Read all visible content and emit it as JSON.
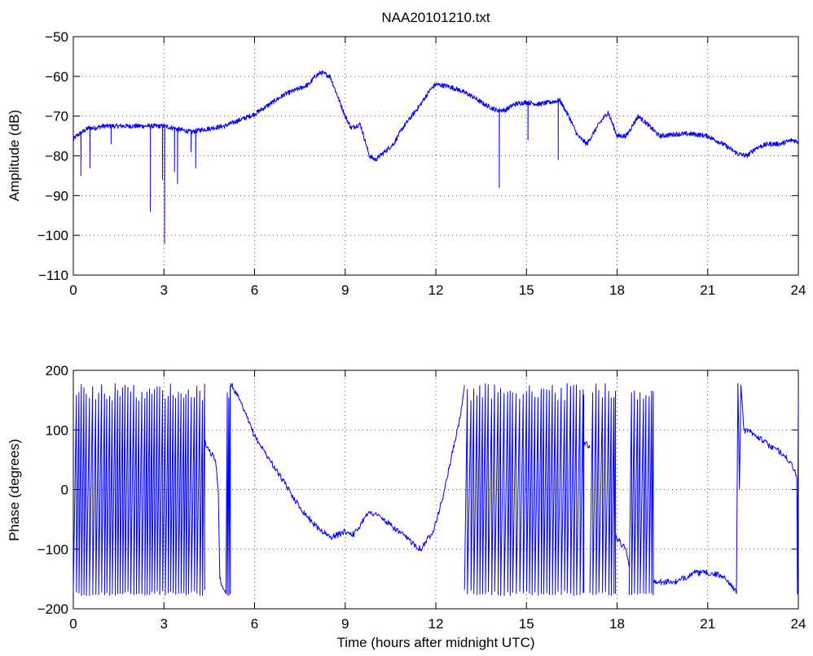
{
  "chart_data": [
    {
      "type": "line",
      "title": "NAA20101210.txt",
      "xlabel": "",
      "ylabel": "Amplitude (dB)",
      "xlim": [
        0,
        24
      ],
      "ylim": [
        -110,
        -50
      ],
      "xticks": [
        0,
        3,
        6,
        9,
        12,
        15,
        18,
        21,
        24
      ],
      "yticks": [
        -110,
        -100,
        -90,
        -80,
        -70,
        -60,
        -50
      ],
      "xtick_labels": [
        "0",
        "3",
        "6",
        "9",
        "12",
        "15",
        "18",
        "21",
        "24"
      ],
      "ytick_labels": [
        "−110",
        "−100",
        "−90",
        "−80",
        "−70",
        "−60",
        "−50"
      ],
      "grid": true,
      "color": "#0000ff",
      "series": [
        {
          "x": [
            0,
            0.1,
            0.2,
            0.3,
            0.4,
            0.5,
            0.7,
            1.0,
            1.5,
            2.0,
            2.5,
            3.0,
            3.3,
            3.6,
            3.9,
            4.2,
            4.6,
            5.0,
            5.5,
            6.0,
            6.5,
            7.0,
            7.5,
            7.8,
            8.0,
            8.2,
            8.5,
            8.8,
            9.0,
            9.2,
            9.5,
            9.8,
            10.0,
            10.3,
            10.6,
            10.9,
            11.2,
            11.5,
            11.8,
            12.0,
            12.4,
            12.8,
            13.2,
            13.6,
            14.0,
            14.3,
            14.6,
            15.0,
            15.4,
            15.8,
            16.1,
            16.4,
            16.7,
            17.0,
            17.4,
            17.7,
            18.0,
            18.3,
            18.7,
            19.0,
            19.4,
            20.0,
            20.5,
            21.0,
            21.5,
            22.0,
            22.3,
            22.6,
            23.0,
            23.4,
            23.8,
            24.0
          ],
          "y": [
            -76,
            -75,
            -74.5,
            -74,
            -73.5,
            -73,
            -73,
            -72.5,
            -72.5,
            -72.5,
            -72.5,
            -72.5,
            -73,
            -73.5,
            -74,
            -73.5,
            -73,
            -72.5,
            -71,
            -69.5,
            -67,
            -64.5,
            -63,
            -62,
            -60,
            -59,
            -60,
            -66,
            -70,
            -73,
            -72,
            -80,
            -81,
            -79,
            -77,
            -73,
            -70,
            -67,
            -63.5,
            -62,
            -62.5,
            -63.5,
            -65,
            -67,
            -68.5,
            -68.5,
            -67,
            -66.5,
            -67,
            -66.5,
            -66,
            -70,
            -75,
            -77,
            -72,
            -69,
            -75,
            -75,
            -70,
            -72,
            -75,
            -74.5,
            -74.5,
            -75,
            -77,
            -79.5,
            -80,
            -78,
            -77,
            -77,
            -76,
            -76.5
          ],
          "spikes": [
            {
              "x": 0.25,
              "y": -85
            },
            {
              "x": 0.55,
              "y": -83
            },
            {
              "x": 1.25,
              "y": -77
            },
            {
              "x": 2.55,
              "y": -94
            },
            {
              "x": 2.95,
              "y": -86
            },
            {
              "x": 3.02,
              "y": -102
            },
            {
              "x": 3.35,
              "y": -84
            },
            {
              "x": 3.45,
              "y": -87
            },
            {
              "x": 3.9,
              "y": -79
            },
            {
              "x": 4.05,
              "y": -83
            },
            {
              "x": 14.1,
              "y": -88
            },
            {
              "x": 15.05,
              "y": -76
            },
            {
              "x": 16.05,
              "y": -81
            }
          ]
        }
      ]
    },
    {
      "type": "line",
      "title": "",
      "xlabel": "Time (hours after midnight UTC)",
      "ylabel": "Phase (degrees)",
      "xlim": [
        0,
        24
      ],
      "ylim": [
        -200,
        200
      ],
      "xticks": [
        0,
        3,
        6,
        9,
        12,
        15,
        18,
        21,
        24
      ],
      "yticks": [
        -200,
        -100,
        0,
        100,
        200
      ],
      "xtick_labels": [
        "0",
        "3",
        "6",
        "9",
        "12",
        "15",
        "18",
        "21",
        "24"
      ],
      "ytick_labels": [
        "−200",
        "−100",
        "0",
        "100",
        "200"
      ],
      "grid": true,
      "color": "#0000ff",
      "series": [
        {
          "segments": [
            {
              "kind": "wrap",
              "x0": 0.0,
              "x1": 4.35,
              "period": 0.09,
              "lo": -178,
              "hi": 178
            },
            {
              "kind": "line",
              "x": [
                4.35,
                4.5,
                4.7,
                4.8,
                4.85
              ],
              "y": [
                80,
                65,
                50,
                0,
                -150
              ]
            },
            {
              "kind": "line",
              "x": [
                4.85,
                5.0,
                5.05
              ],
              "y": [
                -150,
                -170,
                -175
              ]
            },
            {
              "kind": "wrap",
              "x0": 5.05,
              "x1": 5.2,
              "period": 0.05,
              "lo": -178,
              "hi": 178
            },
            {
              "kind": "line",
              "x": [
                5.2,
                5.3,
                5.5,
                6.0,
                6.5,
                7.0,
                7.5,
                8.0,
                8.5,
                8.8,
                9.0,
                9.3,
                9.5,
                9.7,
                10.0,
                10.5,
                11.0,
                11.5,
                11.9,
                12.2,
                12.5,
                12.8,
                12.95
              ],
              "y": [
                178,
                170,
                150,
                90,
                50,
                10,
                -30,
                -60,
                -80,
                -75,
                -70,
                -75,
                -60,
                -40,
                -40,
                -60,
                -80,
                -100,
                -70,
                -20,
                50,
                120,
                175
              ]
            },
            {
              "kind": "wrap",
              "x0": 12.95,
              "x1": 16.9,
              "period": 0.1,
              "lo": -178,
              "hi": 178
            },
            {
              "kind": "line",
              "x": [
                16.9,
                17.1
              ],
              "y": [
                80,
                70
              ]
            },
            {
              "kind": "wrap",
              "x0": 17.1,
              "x1": 17.95,
              "period": 0.1,
              "lo": -178,
              "hi": 178
            },
            {
              "kind": "line",
              "x": [
                17.95,
                18.3,
                18.4
              ],
              "y": [
                -80,
                -100,
                -130
              ]
            },
            {
              "kind": "wrap",
              "x0": 18.4,
              "x1": 19.2,
              "period": 0.1,
              "lo": -178,
              "hi": 178
            },
            {
              "kind": "line",
              "x": [
                19.2,
                19.5,
                20.0,
                20.5,
                21.0,
                21.5,
                21.8,
                21.95
              ],
              "y": [
                -155,
                -155,
                -155,
                -140,
                -140,
                -145,
                -160,
                -175
              ]
            },
            {
              "kind": "line",
              "x": [
                21.95,
                22.0,
                22.05
              ],
              "y": [
                -175,
                178,
                0
              ]
            },
            {
              "kind": "line",
              "x": [
                22.05,
                22.1,
                22.2,
                22.5,
                23.0,
                23.5,
                23.8,
                23.95
              ],
              "y": [
                0,
                175,
                100,
                95,
                75,
                60,
                40,
                20
              ]
            },
            {
              "kind": "line",
              "x": [
                23.95,
                23.97,
                24.0
              ],
              "y": [
                20,
                -175,
                150
              ]
            }
          ]
        }
      ]
    }
  ]
}
